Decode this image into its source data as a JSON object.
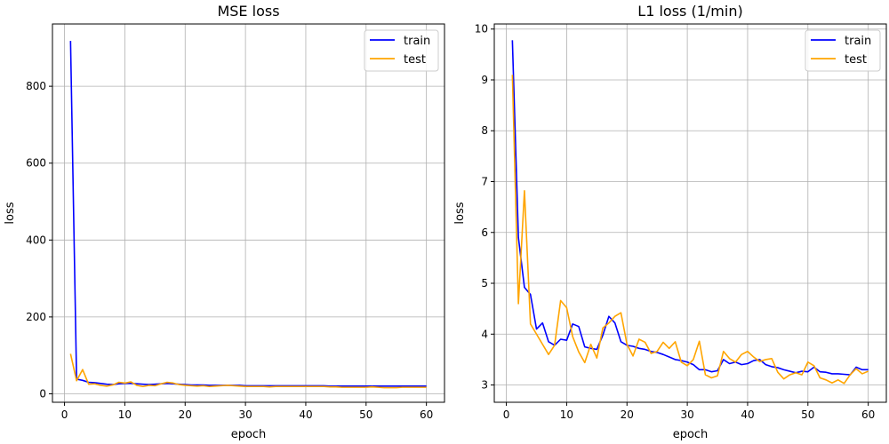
{
  "chart_data": [
    {
      "type": "line",
      "title": "MSE loss",
      "xlabel": "epoch",
      "ylabel": "loss",
      "xlim": [
        -2,
        63
      ],
      "ylim": [
        -22,
        962
      ],
      "xticks": [
        0,
        10,
        20,
        30,
        40,
        50,
        60
      ],
      "yticks": [
        0,
        200,
        400,
        600,
        800
      ],
      "grid": true,
      "legend": "top-right",
      "x": [
        1,
        2,
        3,
        4,
        5,
        6,
        7,
        8,
        9,
        10,
        11,
        12,
        13,
        14,
        15,
        16,
        17,
        18,
        19,
        20,
        21,
        22,
        23,
        24,
        25,
        26,
        27,
        28,
        29,
        30,
        31,
        32,
        33,
        34,
        35,
        36,
        37,
        38,
        39,
        40,
        41,
        42,
        43,
        44,
        45,
        46,
        47,
        48,
        49,
        50,
        51,
        52,
        53,
        54,
        55,
        56,
        57,
        58,
        59,
        60
      ],
      "series": [
        {
          "name": "train",
          "color": "#0000ff",
          "values": [
            918,
            38,
            35,
            30,
            29,
            27,
            25,
            24,
            26,
            27,
            27,
            26,
            25,
            24,
            25,
            26,
            27,
            26,
            25,
            24,
            23,
            23,
            23,
            22,
            22,
            22,
            22,
            22,
            22,
            21,
            21,
            21,
            21,
            21,
            21,
            21,
            21,
            21,
            21,
            21,
            21,
            21,
            21,
            20,
            20,
            20,
            20,
            20,
            20,
            20,
            20,
            20,
            20,
            20,
            20,
            20,
            20,
            20,
            20,
            20
          ]
        },
        {
          "name": "test",
          "color": "#ffa500",
          "values": [
            104,
            34,
            63,
            25,
            26,
            22,
            20,
            23,
            30,
            28,
            31,
            22,
            19,
            22,
            21,
            26,
            30,
            28,
            24,
            22,
            21,
            20,
            21,
            19,
            20,
            21,
            22,
            21,
            20,
            19,
            19,
            19,
            19,
            18,
            19,
            19,
            19,
            19,
            19,
            19,
            19,
            19,
            19,
            18,
            18,
            17,
            17,
            17,
            17,
            17,
            18,
            17,
            16,
            16,
            16,
            17,
            17,
            17,
            17,
            17
          ]
        }
      ]
    },
    {
      "type": "line",
      "title": "L1 loss (1/min)",
      "xlabel": "epoch",
      "ylabel": "loss",
      "xlim": [
        -2,
        63
      ],
      "ylim": [
        2.66,
        10.1
      ],
      "xticks": [
        0,
        10,
        20,
        30,
        40,
        50,
        60
      ],
      "yticks": [
        3,
        4,
        5,
        6,
        7,
        8,
        9,
        10
      ],
      "grid": true,
      "legend": "top-right",
      "x": [
        1,
        2,
        3,
        4,
        5,
        6,
        7,
        8,
        9,
        10,
        11,
        12,
        13,
        14,
        15,
        16,
        17,
        18,
        19,
        20,
        21,
        22,
        23,
        24,
        25,
        26,
        27,
        28,
        29,
        30,
        31,
        32,
        33,
        34,
        35,
        36,
        37,
        38,
        39,
        40,
        41,
        42,
        43,
        44,
        45,
        46,
        47,
        48,
        49,
        50,
        51,
        52,
        53,
        54,
        55,
        56,
        57,
        58,
        59,
        60
      ],
      "series": [
        {
          "name": "train",
          "color": "#0000ff",
          "values": [
            9.78,
            5.9,
            4.92,
            4.78,
            4.1,
            4.22,
            3.85,
            3.78,
            3.9,
            3.88,
            4.2,
            4.15,
            3.75,
            3.72,
            3.7,
            3.98,
            4.35,
            4.22,
            3.85,
            3.78,
            3.76,
            3.72,
            3.7,
            3.66,
            3.64,
            3.6,
            3.55,
            3.5,
            3.48,
            3.45,
            3.4,
            3.3,
            3.3,
            3.26,
            3.28,
            3.5,
            3.42,
            3.45,
            3.4,
            3.42,
            3.48,
            3.5,
            3.4,
            3.36,
            3.34,
            3.3,
            3.27,
            3.24,
            3.27,
            3.26,
            3.35,
            3.26,
            3.25,
            3.22,
            3.22,
            3.21,
            3.2,
            3.35,
            3.3,
            3.3
          ]
        },
        {
          "name": "test",
          "color": "#ffa500",
          "values": [
            9.1,
            4.6,
            6.82,
            4.2,
            4.0,
            3.8,
            3.6,
            3.78,
            4.66,
            4.52,
            3.95,
            3.65,
            3.44,
            3.8,
            3.53,
            4.12,
            4.22,
            4.35,
            4.42,
            3.8,
            3.57,
            3.9,
            3.84,
            3.62,
            3.66,
            3.84,
            3.72,
            3.85,
            3.45,
            3.38,
            3.5,
            3.86,
            3.2,
            3.14,
            3.18,
            3.66,
            3.52,
            3.45,
            3.6,
            3.66,
            3.55,
            3.46,
            3.5,
            3.52,
            3.25,
            3.12,
            3.2,
            3.24,
            3.2,
            3.45,
            3.38,
            3.14,
            3.1,
            3.04,
            3.1,
            3.03,
            3.2,
            3.32,
            3.22,
            3.27
          ]
        }
      ]
    }
  ]
}
